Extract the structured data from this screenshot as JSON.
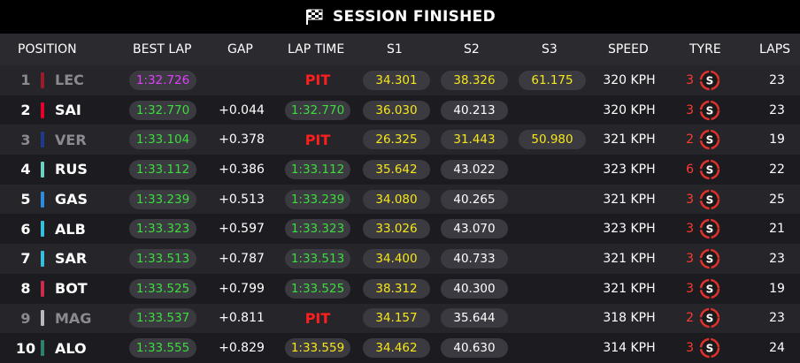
{
  "banner": {
    "title": "SESSION FINISHED",
    "icon": "checkered-flag-icon"
  },
  "columns": {
    "position": "POSITION",
    "best_lap": "BEST LAP",
    "gap": "GAP",
    "lap_time": "LAP TIME",
    "s1": "S1",
    "s2": "S2",
    "s3": "S3",
    "speed": "SPEED",
    "tyre": "TYRE",
    "laps": "LAPS"
  },
  "colors": {
    "purple": "#e040fb",
    "green": "#3ddc3d",
    "yellow": "#f6e61a",
    "white": "#ffffff",
    "pit_red": "#ff1e1e",
    "tyre_soft": "#e0312c"
  },
  "rows": [
    {
      "pos": "1",
      "team_color": "#9b1c2c",
      "driver": "LEC",
      "dim": true,
      "best": "1:32.726",
      "best_color": "purple",
      "gap": "",
      "lap": "PIT",
      "lap_pit": true,
      "s1": "34.301",
      "s1_color": "yellow",
      "s2": "38.326",
      "s2_color": "yellow",
      "s3": "61.175",
      "s3_color": "yellow",
      "speed": "320 KPH",
      "tyre_age": "3",
      "tyre_compound": "S",
      "laps": "23"
    },
    {
      "pos": "2",
      "team_color": "#e8002d",
      "driver": "SAI",
      "dim": false,
      "best": "1:32.770",
      "best_color": "green",
      "gap": "+0.044",
      "lap": "1:32.770",
      "lap_pit": false,
      "lap_color": "green",
      "s1": "36.030",
      "s1_color": "yellow",
      "s2": "40.213",
      "s2_color": "white",
      "s3": "",
      "speed": "320 KPH",
      "tyre_age": "3",
      "tyre_compound": "S",
      "laps": "23"
    },
    {
      "pos": "3",
      "team_color": "#1e3a8a",
      "driver": "VER",
      "dim": true,
      "best": "1:33.104",
      "best_color": "green",
      "gap": "+0.378",
      "lap": "PIT",
      "lap_pit": true,
      "s1": "26.325",
      "s1_color": "yellow",
      "s2": "31.443",
      "s2_color": "yellow",
      "s3": "50.980",
      "s3_color": "yellow",
      "speed": "321 KPH",
      "tyre_age": "2",
      "tyre_compound": "S",
      "laps": "19"
    },
    {
      "pos": "4",
      "team_color": "#6cd3bf",
      "driver": "RUS",
      "dim": false,
      "best": "1:33.112",
      "best_color": "green",
      "gap": "+0.386",
      "lap": "1:33.112",
      "lap_pit": false,
      "lap_color": "green",
      "s1": "35.642",
      "s1_color": "yellow",
      "s2": "43.022",
      "s2_color": "white",
      "s3": "",
      "speed": "323 KPH",
      "tyre_age": "6",
      "tyre_compound": "S",
      "laps": "22"
    },
    {
      "pos": "5",
      "team_color": "#2b8de0",
      "driver": "GAS",
      "dim": false,
      "best": "1:33.239",
      "best_color": "green",
      "gap": "+0.513",
      "lap": "1:33.239",
      "lap_pit": false,
      "lap_color": "green",
      "s1": "34.080",
      "s1_color": "yellow",
      "s2": "40.265",
      "s2_color": "white",
      "s3": "",
      "speed": "321 KPH",
      "tyre_age": "3",
      "tyre_compound": "S",
      "laps": "25"
    },
    {
      "pos": "6",
      "team_color": "#37bedd",
      "driver": "ALB",
      "dim": false,
      "best": "1:33.323",
      "best_color": "green",
      "gap": "+0.597",
      "lap": "1:33.323",
      "lap_pit": false,
      "lap_color": "green",
      "s1": "33.026",
      "s1_color": "yellow",
      "s2": "43.070",
      "s2_color": "white",
      "s3": "",
      "speed": "323 KPH",
      "tyre_age": "3",
      "tyre_compound": "S",
      "laps": "21"
    },
    {
      "pos": "7",
      "team_color": "#37bedd",
      "driver": "SAR",
      "dim": false,
      "best": "1:33.513",
      "best_color": "green",
      "gap": "+0.787",
      "lap": "1:33.513",
      "lap_pit": false,
      "lap_color": "green",
      "s1": "34.400",
      "s1_color": "yellow",
      "s2": "40.733",
      "s2_color": "white",
      "s3": "",
      "speed": "321 KPH",
      "tyre_age": "3",
      "tyre_compound": "S",
      "laps": "23"
    },
    {
      "pos": "8",
      "team_color": "#c92d4b",
      "driver": "BOT",
      "dim": false,
      "best": "1:33.525",
      "best_color": "green",
      "gap": "+0.799",
      "lap": "1:33.525",
      "lap_pit": false,
      "lap_color": "green",
      "s1": "38.312",
      "s1_color": "yellow",
      "s2": "40.300",
      "s2_color": "white",
      "s3": "",
      "speed": "321 KPH",
      "tyre_age": "3",
      "tyre_compound": "S",
      "laps": "19"
    },
    {
      "pos": "9",
      "team_color": "#b6babd",
      "driver": "MAG",
      "dim": true,
      "best": "1:33.537",
      "best_color": "green",
      "gap": "+0.811",
      "lap": "PIT",
      "lap_pit": true,
      "s1": "34.157",
      "s1_color": "yellow",
      "s2": "35.644",
      "s2_color": "white",
      "s3": "",
      "speed": "318 KPH",
      "tyre_age": "2",
      "tyre_compound": "S",
      "laps": "23"
    },
    {
      "pos": "10",
      "team_color": "#2d826d",
      "driver": "ALO",
      "dim": false,
      "best": "1:33.555",
      "best_color": "green",
      "gap": "+0.829",
      "lap": "1:33.559",
      "lap_pit": false,
      "lap_color": "yellow",
      "s1": "34.462",
      "s1_color": "yellow",
      "s2": "40.630",
      "s2_color": "white",
      "s3": "",
      "speed": "314 KPH",
      "tyre_age": "3",
      "tyre_compound": "S",
      "laps": "24"
    }
  ]
}
